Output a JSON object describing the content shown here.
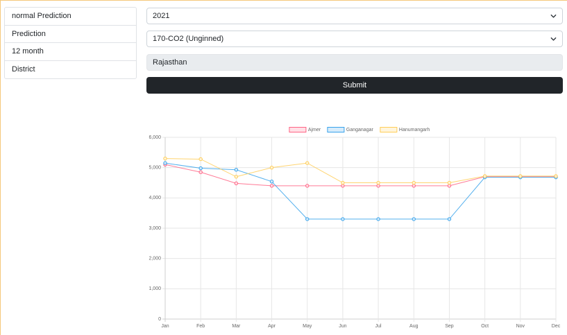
{
  "sidebar": {
    "items": [
      {
        "label": "normal Prediction"
      },
      {
        "label": "Prediction"
      },
      {
        "label": "12 month"
      },
      {
        "label": "District"
      }
    ]
  },
  "form": {
    "year": "2021",
    "crop": "170-CO2 (Unginned)",
    "state": "Rajasthan",
    "submit_label": "Submit"
  },
  "chart_data": {
    "type": "line",
    "categories": [
      "Jan",
      "Feb",
      "Mar",
      "Apr",
      "May",
      "Jun",
      "Jul",
      "Aug",
      "Sep",
      "Oct",
      "Nov",
      "Dec"
    ],
    "ylim": [
      0,
      6000
    ],
    "yticks": [
      "0",
      "1,000",
      "2,000",
      "3,000",
      "4,000",
      "5,000",
      "6,000"
    ],
    "grid": true,
    "legend_position": "top",
    "series": [
      {
        "name": "Ajmer",
        "color": "#ff6384",
        "fill": "#ffe0e6",
        "values": [
          5100,
          4850,
          4480,
          4400,
          4400,
          4400,
          4400,
          4400,
          4400,
          4700,
          4700,
          4700
        ]
      },
      {
        "name": "Ganganagar",
        "color": "#36a2eb",
        "fill": "#d7ecfb",
        "values": [
          5150,
          4980,
          4930,
          4540,
          3300,
          3300,
          3300,
          3300,
          3300,
          4680,
          4680,
          4680
        ]
      },
      {
        "name": "Hanumangarh",
        "color": "#ffcd56",
        "fill": "#fff5dd",
        "values": [
          5300,
          5280,
          4700,
          5000,
          5150,
          4500,
          4500,
          4500,
          4500,
          4720,
          4720,
          4720
        ]
      }
    ]
  }
}
